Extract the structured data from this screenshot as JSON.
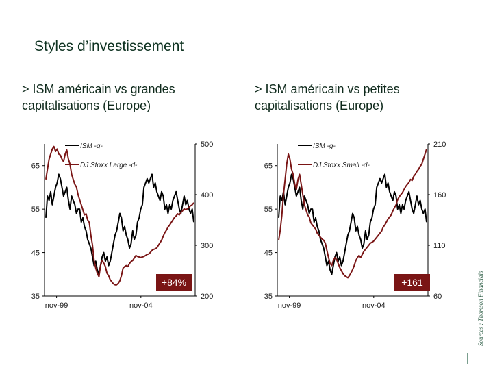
{
  "page": {
    "title": "Styles d’investissement",
    "source": "Sources : Thomson Financials"
  },
  "chart_data": [
    {
      "type": "line",
      "title": "> ISM américain vs grandes capitalisations (Europe)",
      "x_tick_labels": [
        "nov-99",
        "nov-04"
      ],
      "y_left_ticks": [
        "35",
        "45",
        "55",
        "65"
      ],
      "y_left_lim": [
        35,
        70
      ],
      "y_right_ticks": [
        "200",
        "300",
        "400",
        "500"
      ],
      "y_right_lim": [
        200,
        500
      ],
      "annotation": "+84%",
      "legend_position": "top-left",
      "colors": {
        "ism": "#000000",
        "stoxx": "#7a1515",
        "annotation_bg": "#7a1515"
      },
      "series": [
        {
          "name": "ISM -g-",
          "axis": "left",
          "values": [
            53,
            58,
            57,
            59,
            56,
            58,
            60,
            61,
            63,
            62,
            60,
            58,
            59,
            60,
            57,
            55,
            58,
            57,
            56,
            54,
            55,
            55,
            52,
            53,
            51,
            50,
            48,
            47,
            46,
            44,
            42,
            43,
            41,
            40,
            42,
            44,
            45,
            43,
            44,
            42,
            43,
            45,
            47,
            49,
            50,
            52,
            54,
            53,
            50,
            51,
            49,
            48,
            46,
            47,
            50,
            48,
            49,
            52,
            53,
            55,
            56,
            60,
            61,
            62,
            61,
            62,
            63,
            60,
            61,
            59,
            58,
            57,
            59,
            58,
            55,
            56,
            54,
            56,
            55,
            57,
            58,
            59,
            57,
            55,
            54,
            56,
            58,
            56,
            57,
            55,
            54,
            55,
            52
          ]
        },
        {
          "name": "DJ Stoxx Large -d-",
          "axis": "right",
          "values": [
            430,
            450,
            470,
            480,
            490,
            495,
            485,
            490,
            480,
            478,
            470,
            465,
            480,
            488,
            470,
            460,
            440,
            430,
            420,
            415,
            400,
            390,
            380,
            370,
            360,
            362,
            350,
            345,
            320,
            300,
            270,
            255,
            245,
            238,
            260,
            270,
            265,
            258,
            245,
            240,
            232,
            228,
            224,
            222,
            222,
            225,
            230,
            240,
            255,
            258,
            260,
            258,
            264,
            268,
            270,
            275,
            280,
            278,
            277,
            276,
            277,
            278,
            280,
            282,
            283,
            286,
            290,
            292,
            293,
            295,
            300,
            305,
            310,
            318,
            325,
            330,
            336,
            340,
            345,
            350,
            355,
            358,
            362,
            360,
            365,
            368,
            372,
            370,
            372,
            375,
            378,
            380,
            384
          ]
        }
      ]
    },
    {
      "type": "line",
      "title": "> ISM américain vs petites capitalisations (Europe)",
      "x_tick_labels": [
        "nov-99",
        "nov-04"
      ],
      "y_left_ticks": [
        "35",
        "45",
        "55",
        "65"
      ],
      "y_left_lim": [
        35,
        70
      ],
      "y_right_ticks": [
        "60",
        "110",
        "160",
        "210"
      ],
      "y_right_lim": [
        60,
        210
      ],
      "annotation": "+161",
      "legend_position": "top-left",
      "colors": {
        "ism": "#000000",
        "stoxx": "#7a1515",
        "annotation_bg": "#7a1515"
      },
      "series": [
        {
          "name": "ISM -g-",
          "axis": "left",
          "values": [
            53,
            58,
            57,
            59,
            56,
            58,
            60,
            61,
            63,
            62,
            60,
            58,
            59,
            60,
            57,
            55,
            58,
            57,
            56,
            54,
            55,
            55,
            52,
            53,
            51,
            50,
            48,
            47,
            46,
            44,
            42,
            43,
            41,
            40,
            42,
            44,
            45,
            43,
            44,
            42,
            43,
            45,
            47,
            49,
            50,
            52,
            54,
            53,
            50,
            51,
            49,
            48,
            46,
            47,
            50,
            48,
            49,
            52,
            53,
            55,
            56,
            60,
            61,
            62,
            61,
            62,
            63,
            60,
            61,
            59,
            58,
            57,
            59,
            58,
            55,
            56,
            54,
            56,
            55,
            57,
            58,
            59,
            57,
            55,
            54,
            56,
            58,
            56,
            57,
            55,
            54,
            55,
            52
          ]
        },
        {
          "name": "DJ Stoxx Small -d-",
          "axis": "right",
          "values": [
            115,
            125,
            140,
            160,
            175,
            190,
            200,
            195,
            185,
            180,
            170,
            165,
            175,
            180,
            170,
            160,
            150,
            145,
            140,
            138,
            132,
            130,
            128,
            126,
            122,
            120,
            118,
            116,
            115,
            112,
            105,
            98,
            92,
            90,
            95,
            98,
            96,
            92,
            88,
            85,
            82,
            80,
            79,
            78,
            80,
            83,
            86,
            90,
            95,
            98,
            100,
            98,
            101,
            104,
            106,
            108,
            110,
            112,
            113,
            114,
            116,
            118,
            120,
            122,
            124,
            128,
            130,
            133,
            136,
            138,
            140,
            144,
            147,
            150,
            155,
            158,
            160,
            162,
            165,
            168,
            170,
            172,
            175,
            174,
            178,
            180,
            183,
            185,
            188,
            190,
            195,
            200,
            205
          ]
        }
      ]
    }
  ]
}
